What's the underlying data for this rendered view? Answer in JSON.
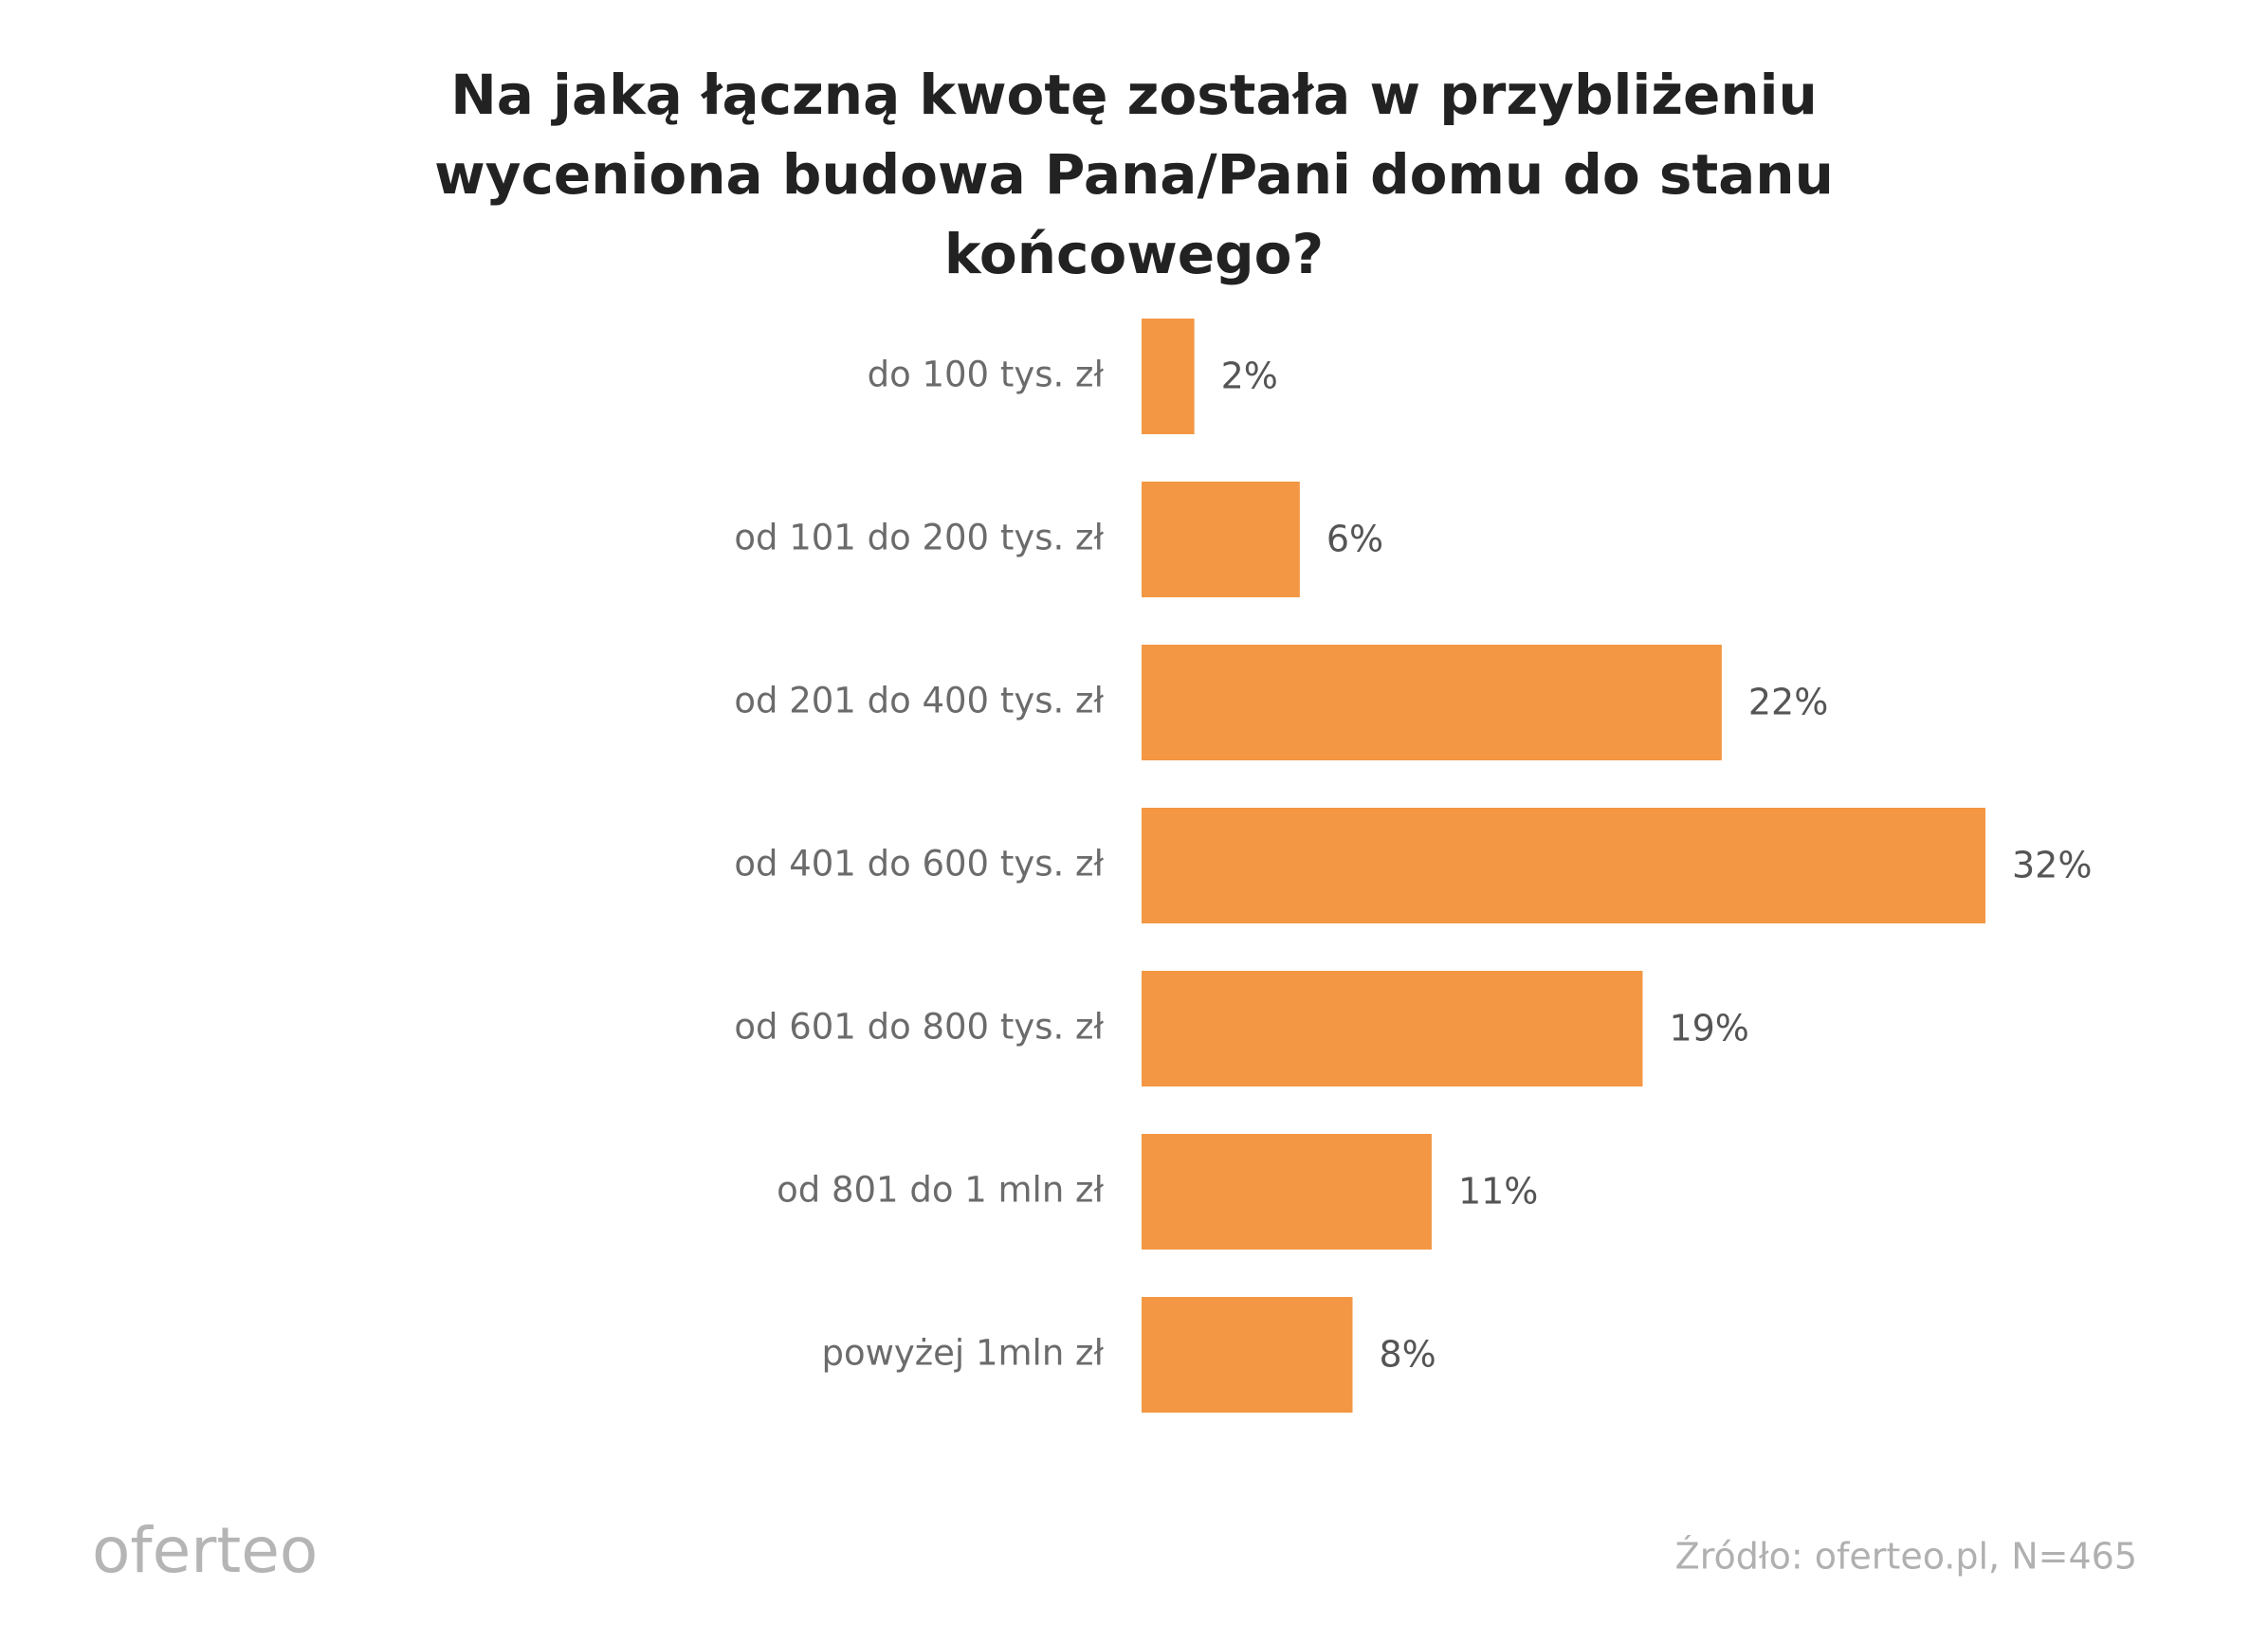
{
  "chart_data": {
    "type": "bar",
    "orientation": "horizontal",
    "title": "Na jaką łączną kwotę została w przybliżeniu wyceniona budowa Pana/Pani domu do stanu końcowego?",
    "categories": [
      "do 100 tys. zł",
      "od 101 do 200 tys. zł",
      "od 201 do 400 tys. zł",
      "od 401 do 600 tys. zł",
      "od 601 do 800 tys. zł",
      "od 801 do 1 mln zł",
      "powyżej 1mln zł"
    ],
    "values": [
      2,
      6,
      22,
      32,
      19,
      11,
      8
    ],
    "value_labels": [
      "2%",
      "6%",
      "22%",
      "32%",
      "19%",
      "11%",
      "8%"
    ],
    "color": "#f39744",
    "source": "Źródło: oferteo.pl, N=465"
  },
  "brand": "oferteo"
}
